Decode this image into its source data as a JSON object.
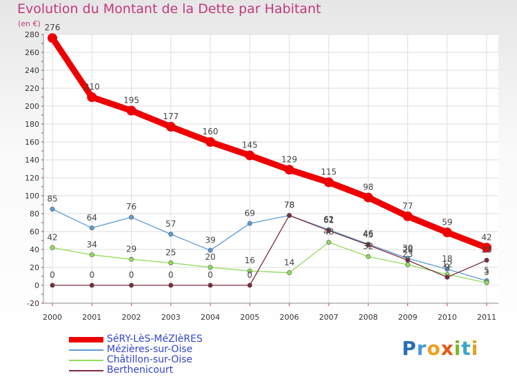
{
  "header": {
    "title": "Evolution du Montant de la Dette par Habitant",
    "unit": "(en €)"
  },
  "chart_data": {
    "type": "line",
    "x": [
      "2000",
      "2001",
      "2002",
      "2003",
      "2004",
      "2005",
      "2006",
      "2007",
      "2008",
      "2009",
      "2010",
      "2011"
    ],
    "ylim": [
      -20,
      280
    ],
    "yticks": [
      -20,
      0,
      20,
      40,
      60,
      80,
      100,
      120,
      140,
      160,
      180,
      200,
      220,
      240,
      260,
      280
    ],
    "grid": true,
    "legend_position": "bottom-left",
    "series": [
      {
        "name": "Mézières-sur-Oise",
        "color": "#5b9bd5",
        "values": [
          85,
          64,
          76,
          57,
          39,
          69,
          78,
          62,
          46,
          30,
          18,
          5
        ]
      },
      {
        "name": "Châtillon-sur-Oise",
        "color": "#8fdc5a",
        "values": [
          42,
          34,
          29,
          25,
          20,
          16,
          14,
          48,
          32,
          23,
          12,
          3
        ]
      },
      {
        "name": "Berthenicourt",
        "color": "#7a2a3a",
        "values": [
          0,
          0,
          0,
          0,
          0,
          0,
          78,
          61,
          45,
          28,
          9,
          28
        ]
      },
      {
        "name": "SéRY-LèS-MéZIèRES",
        "color": "#ee0000",
        "values": [
          276,
          210,
          195,
          177,
          160,
          145,
          129,
          115,
          98,
          77,
          59,
          42
        ]
      }
    ]
  },
  "legend": {
    "items": [
      {
        "label": "SéRY-LèS-MéZIèRES",
        "color": "#ee0000"
      },
      {
        "label": "Mézières-sur-Oise",
        "color": "#5b9bd5"
      },
      {
        "label": "Châtillon-sur-Oise",
        "color": "#8fdc5a"
      },
      {
        "label": "Berthenicourt",
        "color": "#7a2a3a"
      }
    ]
  },
  "logo": {
    "text": "Proxiti"
  }
}
